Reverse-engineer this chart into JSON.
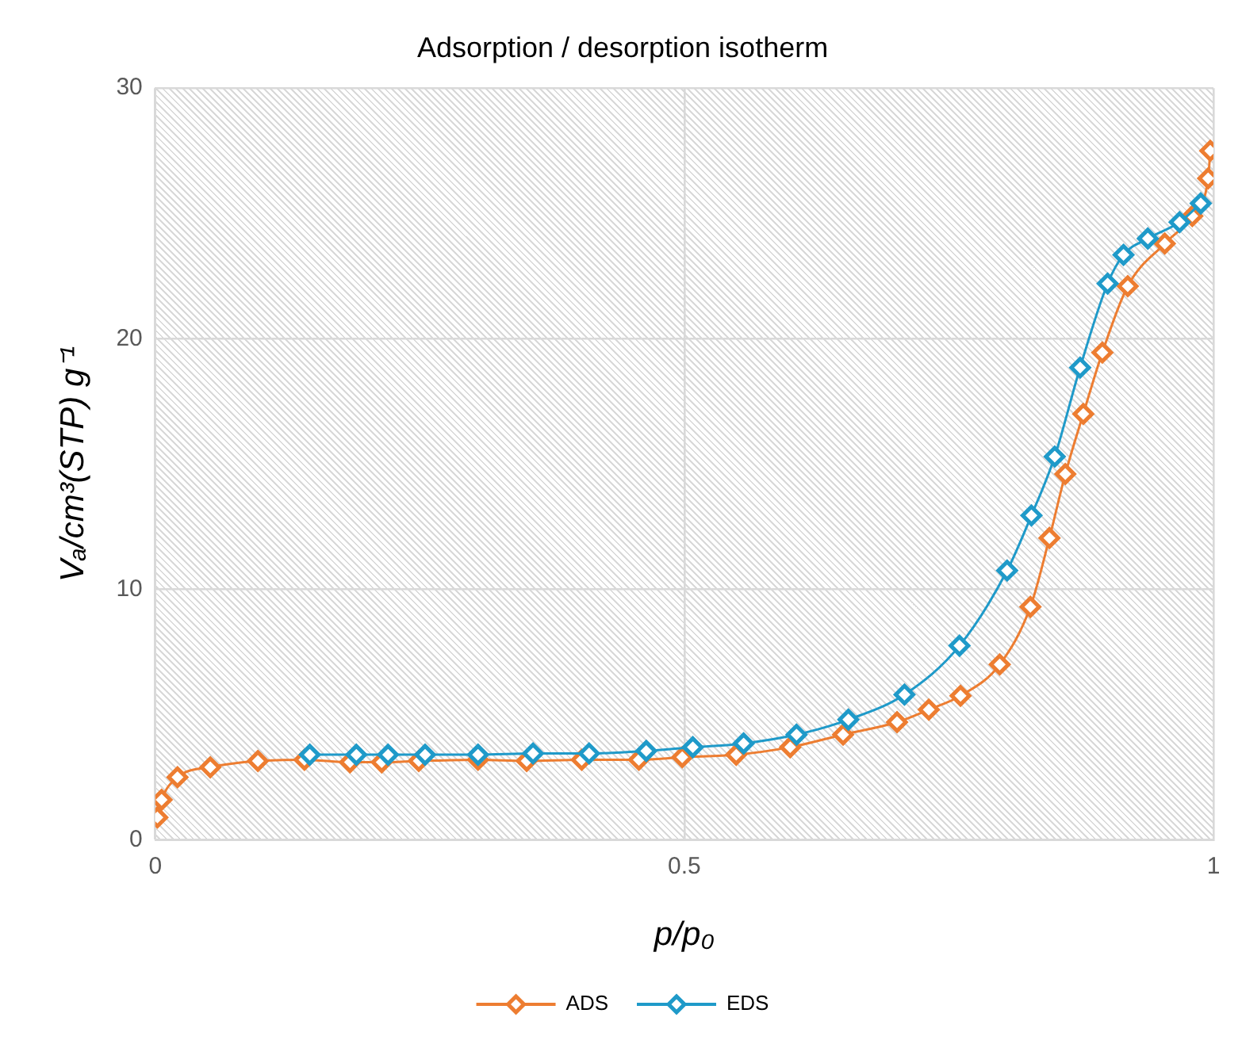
{
  "chart_data": {
    "type": "line",
    "title": "Adsorption / desorption isotherm",
    "xlabel": "p/p₀",
    "ylabel": "Vₐ/cm³(STP) g⁻¹",
    "xlim": [
      0,
      1
    ],
    "xticks": [
      0,
      0.5,
      1
    ],
    "ylim": [
      0,
      30
    ],
    "yticks": [
      0,
      10,
      20,
      30
    ],
    "grid": true,
    "legend": "bottom",
    "marker": "diamond",
    "line_style": "solid",
    "series": [
      {
        "name": "ADS",
        "color": "#ed7d31",
        "x": [
          0.002,
          0.006,
          0.021,
          0.052,
          0.097,
          0.141,
          0.184,
          0.214,
          0.249,
          0.305,
          0.351,
          0.403,
          0.457,
          0.498,
          0.549,
          0.6,
          0.65,
          0.701,
          0.731,
          0.761,
          0.798,
          0.827,
          0.845,
          0.86,
          0.877,
          0.895,
          0.919,
          0.954,
          0.98,
          0.995,
          0.997
        ],
        "values": [
          0.9,
          1.6,
          2.5,
          2.9,
          3.15,
          3.2,
          3.1,
          3.1,
          3.15,
          3.2,
          3.15,
          3.2,
          3.2,
          3.3,
          3.4,
          3.7,
          4.2,
          4.7,
          5.2,
          5.75,
          7.0,
          9.3,
          12.05,
          14.6,
          17.0,
          19.45,
          22.1,
          23.8,
          24.9,
          26.4,
          27.5
        ]
      },
      {
        "name": "EDS",
        "color": "#1f9ac9",
        "x": [
          0.146,
          0.19,
          0.22,
          0.255,
          0.305,
          0.357,
          0.41,
          0.464,
          0.508,
          0.556,
          0.606,
          0.655,
          0.708,
          0.76,
          0.805,
          0.828,
          0.85,
          0.874,
          0.9,
          0.915,
          0.938,
          0.968,
          0.988
        ],
        "values": [
          3.4,
          3.4,
          3.4,
          3.4,
          3.4,
          3.45,
          3.45,
          3.55,
          3.7,
          3.85,
          4.2,
          4.8,
          5.8,
          7.75,
          10.75,
          12.95,
          15.3,
          18.85,
          22.2,
          23.35,
          24.0,
          24.65,
          25.4
        ]
      }
    ]
  }
}
